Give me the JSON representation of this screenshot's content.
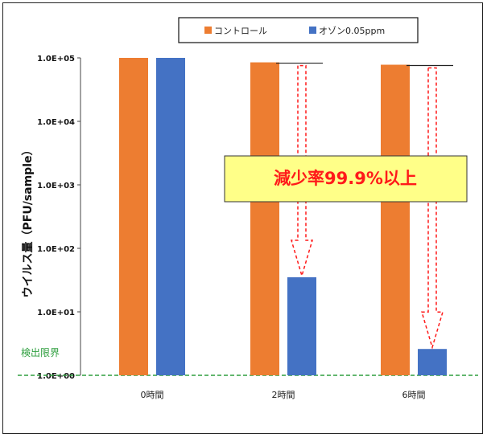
{
  "chart_data": {
    "type": "bar",
    "scale": "log",
    "ylabel": "ウイルス量（PFU/sample）",
    "ytick_labels": [
      "1.0E+00",
      "1.0E+01",
      "1.0E+02",
      "1.0E+03",
      "1.0E+04",
      "1.0E+05"
    ],
    "ylim": [
      1,
      100000
    ],
    "categories": [
      "0時間",
      "2時間",
      "6時間"
    ],
    "series": [
      {
        "name": "コントロール",
        "values": [
          100000,
          85000,
          78000
        ]
      },
      {
        "name": "オゾン0.05ppm",
        "values": [
          100000,
          35,
          2.6
        ]
      }
    ],
    "detection_limit": {
      "label": "検出限界",
      "value": 1
    },
    "annotation": "減少率99.9%以上",
    "legend_position": "top",
    "grid": false,
    "colors": {
      "control": "#ed7d31",
      "ozone": "#4472c4",
      "limit": "#2e9e3e",
      "arrow": "#ff1a1a",
      "callout_bg": "#ffff88"
    }
  }
}
